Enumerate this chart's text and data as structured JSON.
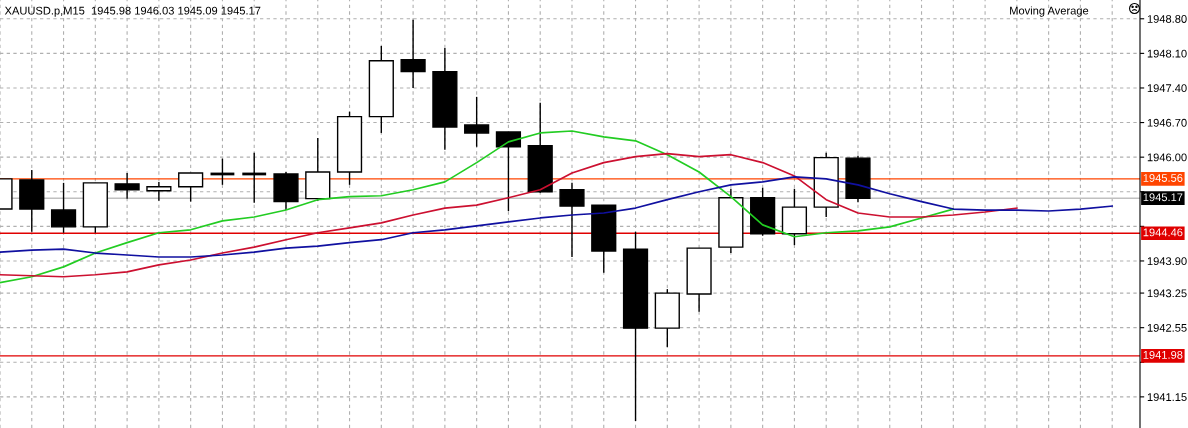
{
  "chart_data": {
    "type": "candlestick",
    "title": "XAUUSD.p,M15  1945.98 1946.03 1945.09 1945.17",
    "annotations": [
      "Moving Average"
    ],
    "categories": [
      null,
      null,
      null,
      null,
      null,
      null,
      null,
      null,
      null,
      null,
      null,
      null,
      null,
      null,
      null,
      null,
      null,
      null,
      null,
      null,
      null,
      null,
      null,
      null,
      null,
      null,
      null,
      null,
      null,
      null,
      null,
      null,
      null,
      null,
      null,
      null
    ],
    "ohlc": [
      [
        1944.95,
        1945.56,
        1944.95,
        1945.56
      ],
      [
        1945.54,
        1945.74,
        1944.49,
        1944.95
      ],
      [
        1944.93,
        1945.48,
        1944.47,
        1944.59
      ],
      [
        1944.59,
        1945.48,
        1944.47,
        1945.48
      ],
      [
        1945.46,
        1945.68,
        1945.16,
        1945.34
      ],
      [
        1945.32,
        1945.5,
        1945.12,
        1945.4
      ],
      [
        1945.4,
        1945.68,
        1945.1,
        1945.68
      ],
      [
        1945.66,
        1945.97,
        1945.44,
        1945.66
      ],
      [
        1945.66,
        1946.09,
        1945.08,
        1945.66
      ],
      [
        1945.66,
        1945.7,
        1944.93,
        1945.1
      ],
      [
        1945.16,
        1946.39,
        1945.12,
        1945.7
      ],
      [
        1945.7,
        1946.92,
        1945.44,
        1946.82
      ],
      [
        1946.82,
        1948.25,
        1946.49,
        1947.95
      ],
      [
        1947.97,
        1948.78,
        1947.4,
        1947.73
      ],
      [
        1947.73,
        1948.21,
        1946.15,
        1946.61
      ],
      [
        1946.65,
        1947.22,
        1946.21,
        1946.49
      ],
      [
        1946.51,
        1946.51,
        1944.91,
        1946.21
      ],
      [
        1946.23,
        1947.1,
        1945.28,
        1945.3
      ],
      [
        1945.34,
        1945.48,
        1943.98,
        1945.01
      ],
      [
        1945.03,
        1945.03,
        1943.66,
        1944.1
      ],
      [
        1944.14,
        1944.49,
        1940.66,
        1942.54
      ],
      [
        1942.54,
        1943.33,
        1942.16,
        1943.25
      ],
      [
        1943.23,
        1944.16,
        1942.87,
        1944.16
      ],
      [
        1944.18,
        1945.36,
        1944.06,
        1945.18
      ],
      [
        1945.18,
        1945.38,
        1944.41,
        1944.45
      ],
      [
        1944.45,
        1945.36,
        1944.22,
        1944.99
      ],
      [
        1944.99,
        1946.09,
        1944.79,
        1945.99
      ],
      [
        1945.98,
        1946.03,
        1945.09,
        1945.17
      ],
      null,
      null,
      null,
      null,
      null,
      null,
      null,
      null
    ],
    "series": [
      {
        "type": "line",
        "color": "#22cc22",
        "values": [
          1943.46,
          1943.58,
          1943.78,
          1944.06,
          1944.27,
          1944.47,
          1944.53,
          1944.71,
          1944.79,
          1944.93,
          1945.14,
          1945.2,
          1945.22,
          1945.34,
          1945.5,
          1945.89,
          1946.31,
          1946.49,
          1946.53,
          1946.41,
          1946.33,
          1946.05,
          1945.7,
          1945.2,
          1944.63,
          1944.39,
          1944.47,
          1944.51,
          1944.59,
          1944.77,
          1944.95,
          null,
          null,
          null,
          null,
          null
        ]
      },
      {
        "type": "line",
        "color": "#cc1030",
        "values": [
          1943.62,
          1943.6,
          1943.58,
          1943.62,
          1943.68,
          1943.82,
          1943.92,
          1944.06,
          1944.18,
          1944.33,
          1944.47,
          1944.57,
          1944.67,
          1944.83,
          1944.97,
          1945.03,
          1945.18,
          1945.34,
          1945.68,
          1945.89,
          1946.01,
          1946.07,
          1946.01,
          1946.05,
          1945.89,
          1945.62,
          1945.14,
          1944.87,
          1944.79,
          1944.79,
          1944.83,
          1944.89,
          1944.97,
          null,
          null,
          null
        ]
      },
      {
        "type": "line",
        "color": "#1010a0",
        "values": [
          1944.08,
          1944.12,
          1944.14,
          1944.06,
          1944.02,
          1943.98,
          1943.98,
          1944.02,
          1944.08,
          1944.16,
          1944.2,
          1944.27,
          1944.33,
          1944.47,
          1944.53,
          1944.61,
          1944.69,
          1944.77,
          1944.83,
          1944.87,
          1944.97,
          1945.14,
          1945.3,
          1945.44,
          1945.5,
          1945.6,
          1945.56,
          1945.44,
          1945.26,
          1945.1,
          1944.95,
          1944.93,
          1944.93,
          1944.91,
          1944.95,
          1945.01
        ]
      }
    ],
    "ylim": [
      1940.52,
      1949.18
    ],
    "yticks": [
      1941.15,
      {
        "value": 1941.85,
        "label": null
      },
      1942.55,
      1943.25,
      {
        "value": 1943.9,
        "label": "1943.90"
      },
      {
        "value": 1944.6,
        "label": null
      },
      {
        "value": 1945.3,
        "label": null
      },
      {
        "value": 1946.0,
        "label": "1946.00"
      },
      {
        "value": 1946.7,
        "label": "1946.70"
      },
      {
        "value": 1947.4,
        "label": "1947.40"
      },
      {
        "value": 1948.1,
        "label": "1948.10"
      },
      {
        "value": 1948.8,
        "label": "1948.80"
      }
    ],
    "ref_lines": [
      {
        "axis": "y",
        "value": 1945.56,
        "label": "1945.56",
        "color": "#ff4500"
      },
      {
        "axis": "y",
        "value": 1945.17,
        "label": "1945.17",
        "color": "#c0c0c0"
      },
      {
        "axis": "y",
        "value": 1944.46,
        "label": "1944.46",
        "color": "#e00000"
      },
      {
        "axis": "y",
        "value": 1941.98,
        "label": "1941.98",
        "color": "#e00000"
      }
    ],
    "grid": true,
    "tick_labels": "y",
    "line_style": "solid",
    "marker": "none",
    "legend": false
  }
}
